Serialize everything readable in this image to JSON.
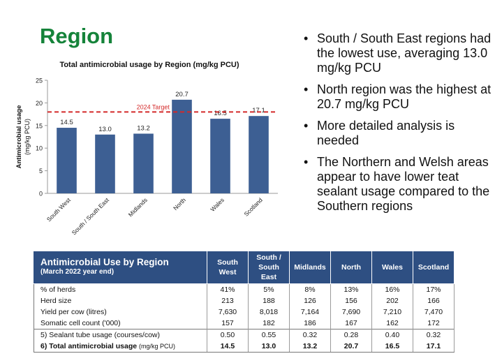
{
  "page_title": "Region",
  "bullets": [
    "South / South East regions had the lowest use, averaging 13.0 mg/kg PCU",
    "North region was the highest at 20.7 mg/kg PCU",
    "More detailed analysis is needed",
    "The Northern and Welsh areas appear to have lower teat sealant usage compared to the Southern regions"
  ],
  "chart_data": {
    "type": "bar",
    "title": "Total antimicrobial usage by Region (mg/kg PCU)",
    "ylabel": "Antimicrobial usage",
    "ylabel_unit": "(mg/kg PCU)",
    "xlabel": "",
    "categories": [
      "South West",
      "South / South East",
      "Midlands",
      "North",
      "Wales",
      "Scotland"
    ],
    "values": [
      14.5,
      13.0,
      13.2,
      20.7,
      16.5,
      17.1
    ],
    "value_labels": [
      "14.5",
      "13.0",
      "13.2",
      "20.7",
      "16.5",
      "17.1"
    ],
    "ylim": [
      0,
      25
    ],
    "yticks": [
      0,
      5,
      10,
      15,
      20,
      25
    ],
    "target_value": 18,
    "target_label": "2024 Target",
    "grid": false,
    "bar_color": "#3d5f93",
    "target_color": "#d42a2a"
  },
  "table": {
    "title": "Antimicrobial Use by Region",
    "subtitle": "(March 2022 year end)",
    "columns": [
      [
        "South",
        "West"
      ],
      [
        "South /",
        "South",
        "East"
      ],
      [
        "Midlands"
      ],
      [
        "North"
      ],
      [
        "Wales"
      ],
      [
        "Scotland"
      ]
    ],
    "rows": [
      {
        "label": "% of herds",
        "values": [
          "41%",
          "5%",
          "8%",
          "13%",
          "16%",
          "17%"
        ]
      },
      {
        "label": "Herd size",
        "values": [
          "213",
          "188",
          "126",
          "156",
          "202",
          "166"
        ]
      },
      {
        "label": "Yield per cow (litres)",
        "values": [
          "7,630",
          "8,018",
          "7,164",
          "7,690",
          "7,210",
          "7,470"
        ]
      },
      {
        "label": "Somatic cell count ('000)",
        "values": [
          "157",
          "182",
          "186",
          "167",
          "162",
          "172"
        ]
      },
      {
        "label": "5) Sealant tube usage (courses/cow)",
        "values": [
          "0.50",
          "0.55",
          "0.32",
          "0.28",
          "0.40",
          "0.32"
        ]
      },
      {
        "label": "6) Total antimicrobial usage",
        "unit": "(mg/kg PCU)",
        "values": [
          "14.5",
          "13.0",
          "13.2",
          "20.7",
          "16.5",
          "17.1"
        ]
      }
    ]
  }
}
